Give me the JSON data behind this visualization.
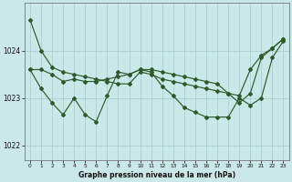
{
  "title": "Graphe pression niveau de la mer (hPa)",
  "bg_color": "#cbe8e8",
  "line_color": "#2d5a2d",
  "grid_color": "#b0d4d4",
  "series": [
    [
      1024.65,
      1024.0,
      1023.65,
      1023.55,
      1023.5,
      1023.45,
      1023.4,
      1023.35,
      1023.3,
      1023.3,
      1023.55,
      1023.5,
      1023.4,
      1023.35,
      1023.3,
      1023.25,
      1023.2,
      1023.15,
      1023.1,
      1023.05,
      1023.6,
      1023.9,
      1024.05,
      1024.25
    ],
    [
      1023.6,
      1023.6,
      1023.5,
      1023.35,
      1023.4,
      1023.35,
      1023.35,
      1023.4,
      1023.45,
      1023.5,
      1023.6,
      1023.6,
      1023.55,
      1023.5,
      1023.45,
      1023.4,
      1023.35,
      1023.3,
      1023.1,
      1022.9,
      1023.1,
      1023.85,
      1024.05,
      1024.25
    ],
    [
      1023.6,
      1023.2,
      1022.9,
      1022.65,
      1023.0,
      1022.65,
      1022.5,
      1023.05,
      1023.55,
      1023.5,
      1023.6,
      1023.55,
      1023.25,
      1023.05,
      1022.8,
      1022.7,
      1022.6,
      1022.6,
      1022.6,
      1023.0,
      1022.85,
      1023.0,
      1023.85,
      1024.2
    ]
  ],
  "x_ticks": [
    0,
    1,
    2,
    3,
    4,
    5,
    6,
    7,
    8,
    9,
    10,
    11,
    12,
    13,
    14,
    15,
    16,
    17,
    18,
    19,
    20,
    21,
    22,
    23
  ],
  "y_ticks": [
    1022,
    1023,
    1024
  ],
  "ylim": [
    1021.7,
    1025.0
  ],
  "xlim": [
    -0.5,
    23.5
  ]
}
